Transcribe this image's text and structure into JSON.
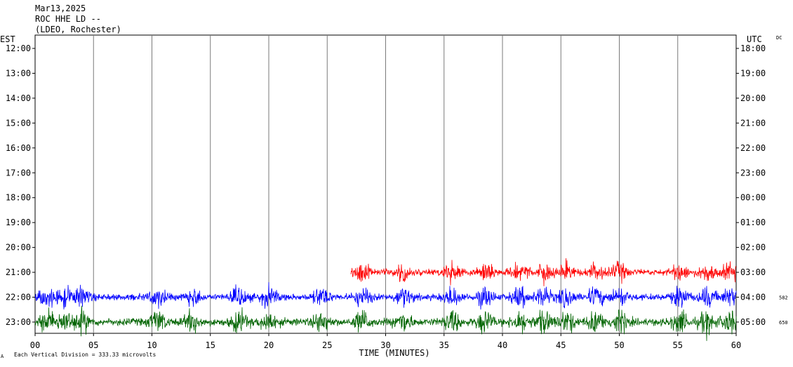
{
  "header": {
    "date": "Mar13,2025",
    "channel": "ROC HHE LD --",
    "source": "(LDEO, Rochester)"
  },
  "left_zone": "EST",
  "right_zone": "UTC",
  "dc_label": "DC",
  "footer_mark": "A",
  "footer_note": "Each Vertical Division =  333.33 microvolts",
  "chart_data": {
    "type": "line",
    "xlabel": "TIME (MINUTES)",
    "xlim": [
      0,
      60
    ],
    "x_ticks": [
      "00",
      "05",
      "10",
      "15",
      "20",
      "25",
      "30",
      "35",
      "40",
      "45",
      "50",
      "55",
      "60"
    ],
    "left_ticks": [
      "12:00",
      "13:00",
      "14:00",
      "15:00",
      "16:00",
      "17:00",
      "18:00",
      "19:00",
      "20:00",
      "21:00",
      "22:00",
      "23:00"
    ],
    "right_ticks": [
      "18:00",
      "19:00",
      "20:00",
      "21:00",
      "22:00",
      "23:00",
      "00:00",
      "01:00",
      "02:00",
      "03:00",
      "04:00",
      "05:00"
    ],
    "grid": "vertical",
    "trace_offsets": [
      {
        "row": "22:00",
        "value": "582"
      },
      {
        "row": "23:00",
        "value": "650"
      }
    ],
    "series": [
      {
        "row": "21:00",
        "start_min": 27,
        "end_min": 60,
        "color": "#ff0000"
      },
      {
        "row": "22:00",
        "start_min": 0,
        "end_min": 60,
        "color": "#0000ff"
      },
      {
        "row": "23:00",
        "start_min": 0,
        "end_min": 60,
        "color": "#006400"
      }
    ]
  }
}
